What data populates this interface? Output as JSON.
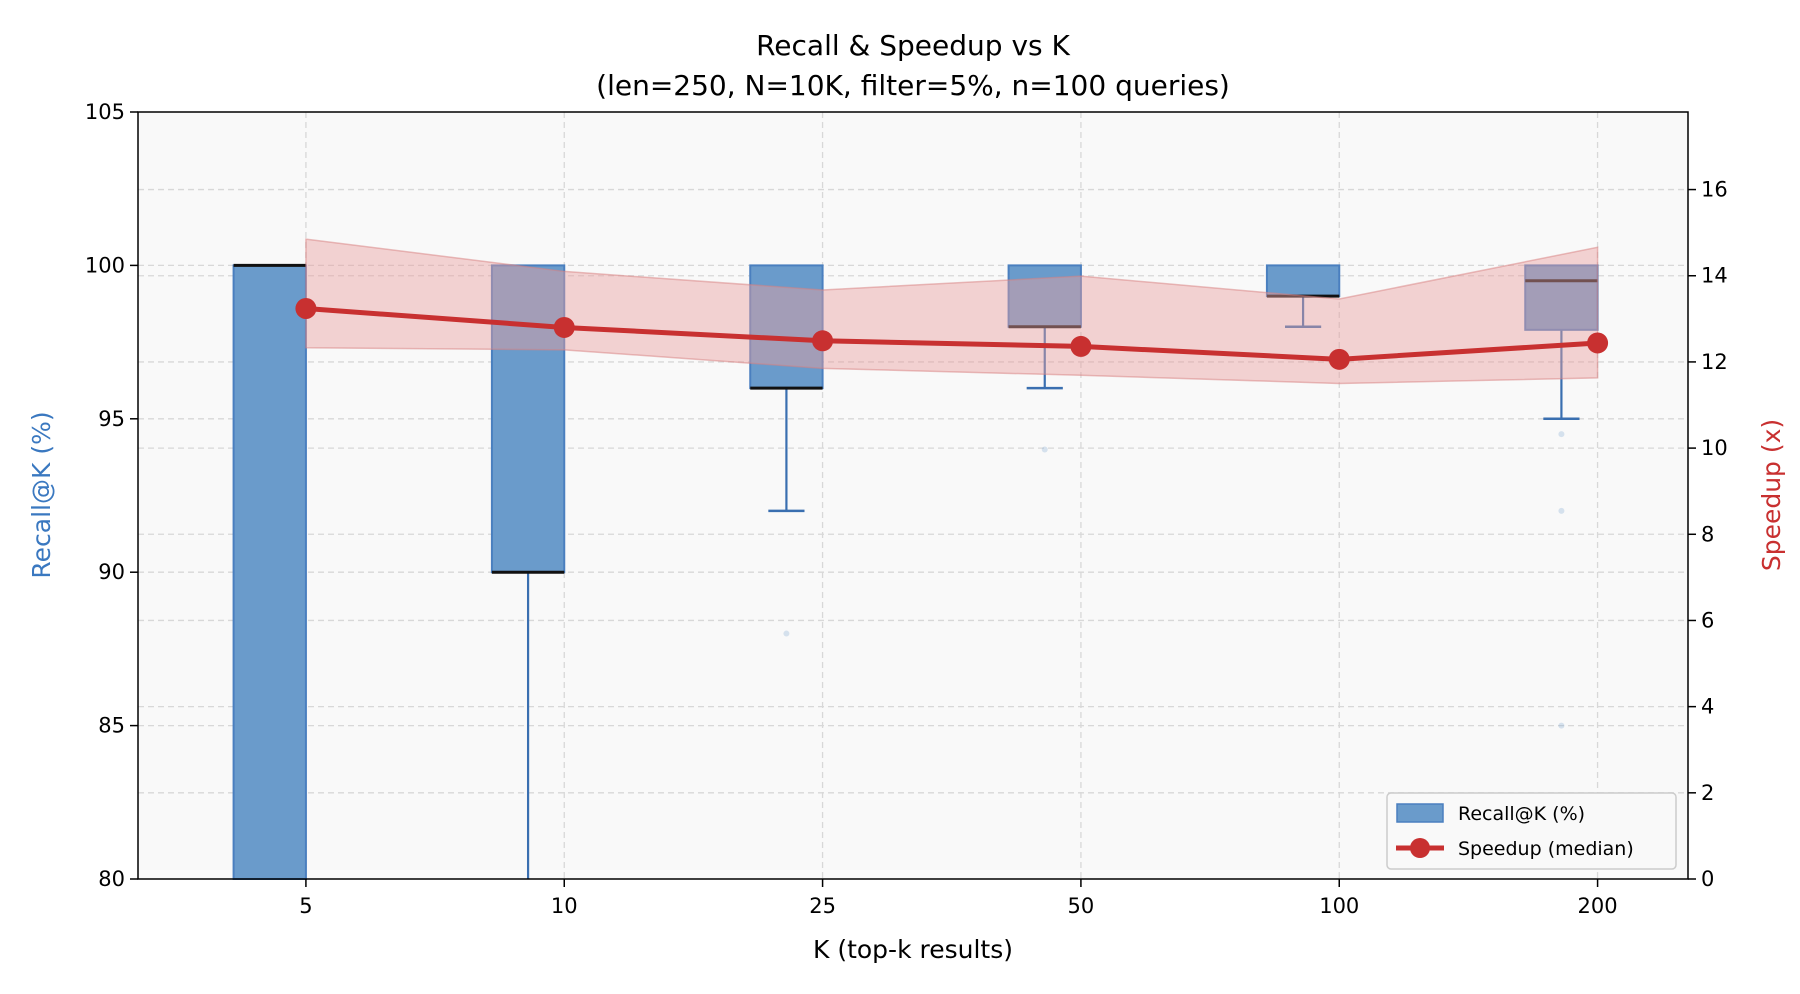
{
  "chart_data": {
    "type": "box+line",
    "title": "Recall & Speedup vs K",
    "subtitle": "(len=250, N=10K, filter=5%, n=100 queries)",
    "xlabel": "K (top-k results)",
    "ylabel_left": "Recall@K (%)",
    "ylabel_right": "Speedup (x)",
    "categories": [
      "5",
      "10",
      "25",
      "50",
      "100",
      "200"
    ],
    "ylim_left": [
      80,
      105
    ],
    "yticks_left": [
      80,
      85,
      90,
      95,
      100,
      105
    ],
    "ylim_right": [
      0,
      17.8
    ],
    "yticks_right": [
      0,
      2,
      4,
      6,
      8,
      10,
      12,
      14,
      16
    ],
    "grid": true,
    "legend_position": "bottom-right",
    "recall_boxes": {
      "name": "Recall@K (%)",
      "color": "#6a9bcb",
      "edge_color": "#4a7fbf",
      "boxes": [
        {
          "whisker_low": 50,
          "q1": 60,
          "median": 100,
          "q3": 100,
          "whisker_high": 100,
          "fliers": []
        },
        {
          "whisker_low": 60,
          "q1": 90,
          "median": 90,
          "q3": 100,
          "whisker_high": 100,
          "fliers": []
        },
        {
          "whisker_low": 92,
          "q1": 96,
          "median": 96,
          "q3": 100,
          "whisker_high": 100,
          "fliers": [
            88
          ]
        },
        {
          "whisker_low": 96,
          "q1": 98,
          "median": 98,
          "q3": 100,
          "whisker_high": 100,
          "fliers": [
            94
          ]
        },
        {
          "whisker_low": 98,
          "q1": 99,
          "median": 99,
          "q3": 100,
          "whisker_high": 100,
          "fliers": []
        },
        {
          "whisker_low": 95,
          "q1": 97.9,
          "median": 99.5,
          "q3": 100,
          "whisker_high": 100,
          "fliers": [
            94.5,
            92,
            85
          ]
        }
      ]
    },
    "speedup": {
      "name": "Speedup (median)",
      "color": "#c83030",
      "median": [
        13.24,
        12.8,
        12.49,
        12.36,
        12.06,
        12.44
      ],
      "band_upper": [
        14.85,
        14.1,
        13.67,
        13.99,
        13.46,
        14.66
      ],
      "band_lower": [
        12.33,
        12.28,
        11.85,
        11.69,
        11.5,
        11.63
      ]
    }
  }
}
